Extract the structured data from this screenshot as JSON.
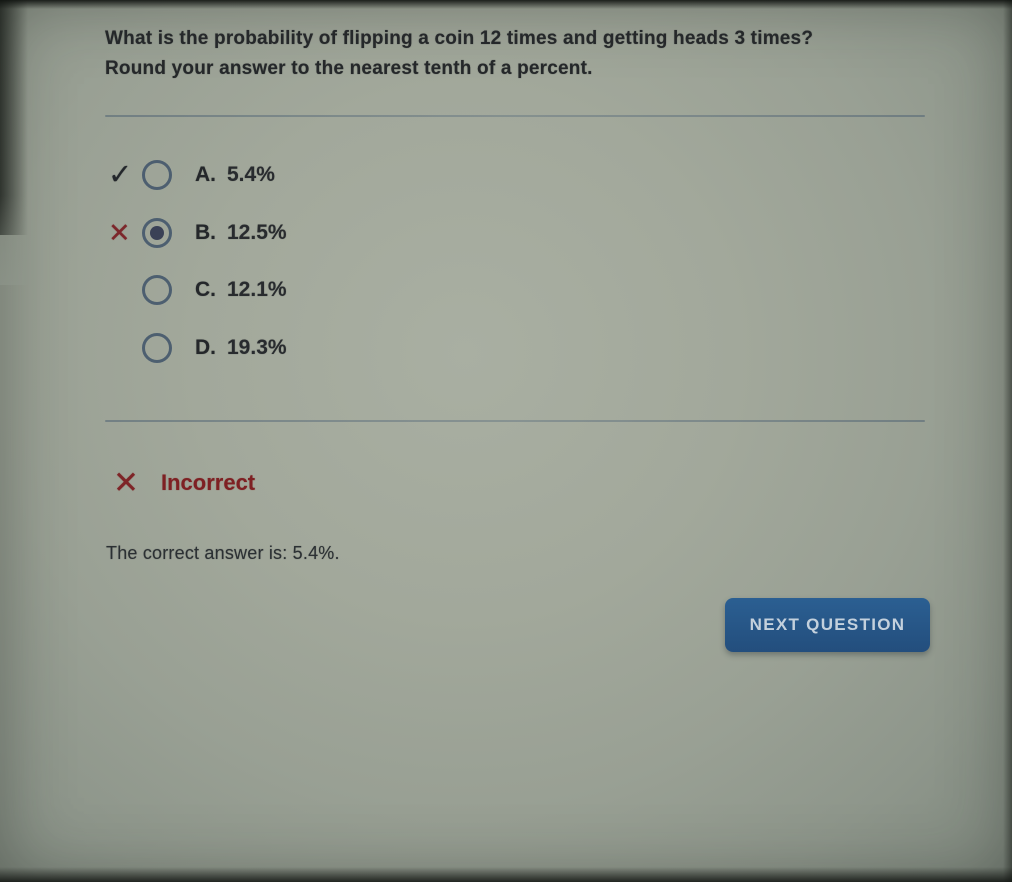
{
  "question": {
    "line1": "What is the probability of flipping a coin 12 times and getting heads 3 times?",
    "line2": "Round your answer to the nearest tenth of a percent."
  },
  "markers": {
    "check_glyph": "✓",
    "cross_glyph": "✕"
  },
  "options": [
    {
      "letter": "A.",
      "value": "5.4%",
      "marker": "check",
      "selected": false
    },
    {
      "letter": "B.",
      "value": "12.5%",
      "marker": "cross",
      "selected": true
    },
    {
      "letter": "C.",
      "value": "12.1%",
      "marker": "",
      "selected": false
    },
    {
      "letter": "D.",
      "value": "19.3%",
      "marker": "",
      "selected": false
    }
  ],
  "feedback": {
    "status_icon": "✕",
    "status_label": "Incorrect",
    "explanation": "The correct answer is: 5.4%."
  },
  "actions": {
    "next_button_label": "NEXT QUESTION"
  },
  "colors": {
    "button_blue": "#27568A",
    "incorrect_red": "#7E2023",
    "check_dark": "#23272B",
    "radio_outline": "#3E5268",
    "background_gray_green": "#9DA49A"
  }
}
